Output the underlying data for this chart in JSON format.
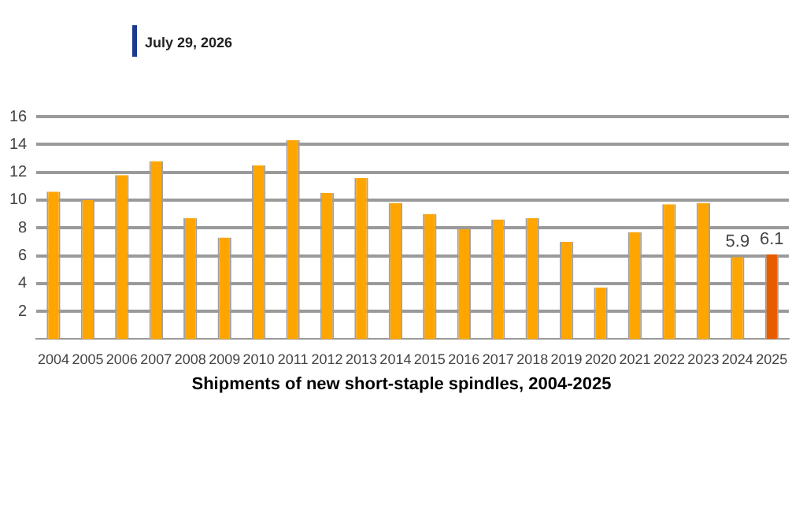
{
  "chart_data": {
    "type": "bar",
    "title": "Shipments of new short-staple spindles, 2004-2025",
    "categories": [
      "2004",
      "2005",
      "2006",
      "2007",
      "2008",
      "2009",
      "2010",
      "2011",
      "2012",
      "2013",
      "2014",
      "2015",
      "2016",
      "2017",
      "2018",
      "2019",
      "2020",
      "2021",
      "2022",
      "2023",
      "2024",
      "2025"
    ],
    "values": [
      10.6,
      10.0,
      11.8,
      12.8,
      8.7,
      7.3,
      12.5,
      14.3,
      10.5,
      11.6,
      9.8,
      9.0,
      7.9,
      8.6,
      8.7,
      7.0,
      3.7,
      7.7,
      9.7,
      9.8,
      5.9,
      6.1
    ],
    "colors": [
      "#ffa500",
      "#ffa500",
      "#ffa500",
      "#ffa500",
      "#ffa500",
      "#ffa500",
      "#ffa500",
      "#ffa500",
      "#ffa500",
      "#ffa500",
      "#ffa500",
      "#ffa500",
      "#ffa500",
      "#ffa500",
      "#ffa500",
      "#ffa500",
      "#ffa500",
      "#ffa500",
      "#ffa500",
      "#ffa500",
      "#ffa500",
      "#e65c00"
    ],
    "value_labels": [
      null,
      null,
      null,
      null,
      null,
      null,
      null,
      null,
      null,
      null,
      null,
      null,
      null,
      null,
      null,
      null,
      null,
      null,
      null,
      null,
      "5.9",
      "6.1"
    ],
    "ylim": [
      0,
      16
    ],
    "yticks": [
      2,
      4,
      6,
      8,
      10,
      12,
      14,
      16
    ],
    "grid": "y",
    "legend": false,
    "annotations": [
      "July 29, 2026"
    ]
  }
}
